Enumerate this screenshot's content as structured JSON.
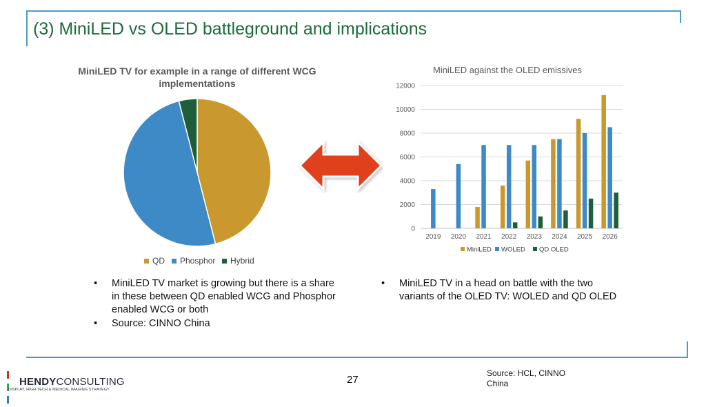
{
  "slide": {
    "title": "(3) MiniLED vs OLED battleground and implications",
    "page_number": "27",
    "source": "Source: HCL, CINNO China"
  },
  "logo": {
    "word_main": "HENDY",
    "word_second": "CONSULTING",
    "tagline": "DISPLAY, HIGH TECH & MEDICAL IMAGING STRATEGY",
    "bar_colors": [
      "#c0392b",
      "#27ae60",
      "#2f80c0"
    ]
  },
  "left_bullets": [
    "MiniLED TV market is growing but there is a share in these between QD enabled WCG and Phosphor enabled WCG or both",
    "Source: CINNO China"
  ],
  "right_bullets": [
    "MiniLED TV in a head on battle with the two variants of the OLED TV: WOLED and QD OLED"
  ],
  "arrow": {
    "color": "#e0401a",
    "meaning": "double-headed arrow"
  },
  "chart_data": [
    {
      "type": "pie",
      "title": "MiniLED TV for example in a range of different WCG implementations",
      "labels": [
        "QD",
        "Phosphor",
        "Hybrid"
      ],
      "values": [
        46,
        50,
        4
      ],
      "colors": [
        "#c9992f",
        "#3d8ac6",
        "#1f5e3b"
      ],
      "legend": "bottom"
    },
    {
      "type": "bar",
      "title": "MiniLED against the OLED emissives",
      "categories": [
        "2019",
        "2020",
        "2021",
        "2022",
        "2023",
        "2024",
        "2025",
        "2026"
      ],
      "series": [
        {
          "name": "MiniLED",
          "color": "#c9992f",
          "values": [
            0,
            0,
            1800,
            3600,
            5700,
            7500,
            9200,
            11200
          ]
        },
        {
          "name": "WOLED",
          "color": "#3d8ac6",
          "values": [
            3300,
            5400,
            7000,
            7000,
            7000,
            7500,
            8000,
            8500
          ]
        },
        {
          "name": "QD OLED",
          "color": "#1f5e3b",
          "values": [
            0,
            0,
            0,
            500,
            1000,
            1500,
            2500,
            3000
          ]
        }
      ],
      "ylim": [
        0,
        12000
      ],
      "yticks": [
        0,
        2000,
        4000,
        6000,
        8000,
        10000,
        12000
      ],
      "grid": true,
      "legend": "bottom"
    }
  ]
}
